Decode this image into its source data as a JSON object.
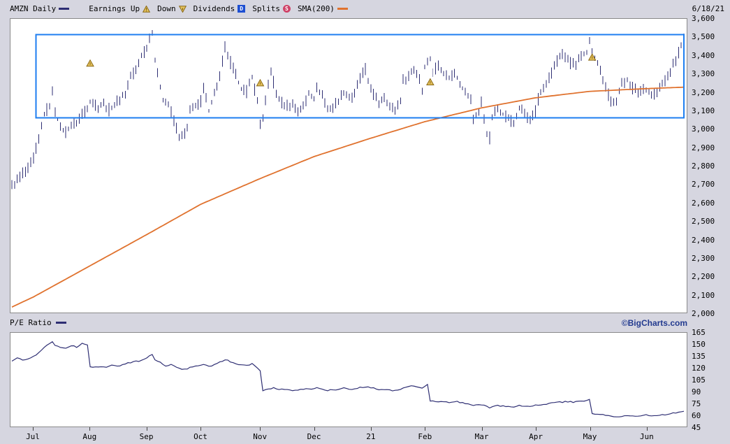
{
  "header": {
    "symbol": "AMZN Daily",
    "legend": {
      "earnings_up": "Earnings Up",
      "down": "Down",
      "dividends": "Dividends",
      "splits": "Splits",
      "sma": "SMA(200)"
    },
    "icons": {
      "dividends_letter": "D",
      "splits_letter": "S"
    },
    "date": "6/18/21"
  },
  "pe_band": {
    "label": "P/E Ratio",
    "brand": "©BigCharts.com"
  },
  "colors": {
    "price": "#2e2e73",
    "sma": "#e0722e",
    "annotation": "#1e7ef0",
    "marker_fill": "#e3c05c",
    "marker_stroke": "#8a6914",
    "pe_line": "#2e2e73",
    "dividends_bg": "#1e4fd2",
    "splits_bg": "#cf4368"
  },
  "chart_data": [
    {
      "type": "ohlc-bar",
      "title": "AMZN Daily price",
      "legend": [
        "AMZN Daily",
        "SMA(200)"
      ],
      "ylim": [
        2000,
        3600
      ],
      "y_ticks": [
        "3,600",
        "3,500",
        "3,400",
        "3,300",
        "3,200",
        "3,100",
        "3,000",
        "2,900",
        "2,800",
        "2,700",
        "2,600",
        "2,500",
        "2,400",
        "2,300",
        "2,200",
        "2,100",
        "2,000"
      ],
      "grid": false,
      "bar_count": 250,
      "bar_range": 30,
      "x_months": [
        {
          "label": "Jul",
          "day": 8
        },
        {
          "label": "Aug",
          "day": 29
        },
        {
          "label": "Sep",
          "day": 50
        },
        {
          "label": "Oct",
          "day": 70
        },
        {
          "label": "Nov",
          "day": 92
        },
        {
          "label": "Dec",
          "day": 112
        },
        {
          "label": "21",
          "day": 133
        },
        {
          "label": "Feb",
          "day": 153
        },
        {
          "label": "Mar",
          "day": 174
        },
        {
          "label": "Apr",
          "day": 194
        },
        {
          "label": "May",
          "day": 214
        },
        {
          "label": "Jun",
          "day": 235
        }
      ],
      "close_keypoints": [
        [
          0,
          2690
        ],
        [
          2,
          2720
        ],
        [
          4,
          2760
        ],
        [
          6,
          2780
        ],
        [
          8,
          2840
        ],
        [
          10,
          2940
        ],
        [
          12,
          3080
        ],
        [
          14,
          3130
        ],
        [
          15,
          3200
        ],
        [
          16,
          3105
        ],
        [
          18,
          3000
        ],
        [
          20,
          2985
        ],
        [
          22,
          3020
        ],
        [
          24,
          3035
        ],
        [
          26,
          3085
        ],
        [
          28,
          3120
        ],
        [
          29,
          3150
        ],
        [
          30,
          3148
        ],
        [
          32,
          3120
        ],
        [
          34,
          3135
        ],
        [
          36,
          3105
        ],
        [
          38,
          3130
        ],
        [
          40,
          3165
        ],
        [
          42,
          3190
        ],
        [
          44,
          3290
        ],
        [
          46,
          3320
        ],
        [
          48,
          3400
        ],
        [
          50,
          3450
        ],
        [
          51,
          3499
        ],
        [
          52,
          3530
        ],
        [
          53,
          3370
        ],
        [
          54,
          3295
        ],
        [
          56,
          3160
        ],
        [
          58,
          3130
        ],
        [
          60,
          3050
        ],
        [
          62,
          2960
        ],
        [
          63,
          2955
        ],
        [
          65,
          3000
        ],
        [
          66,
          3095
        ],
        [
          68,
          3130
        ],
        [
          70,
          3149
        ],
        [
          71,
          3221
        ],
        [
          73,
          3100
        ],
        [
          75,
          3190
        ],
        [
          77,
          3286
        ],
        [
          79,
          3443
        ],
        [
          81,
          3363
        ],
        [
          83,
          3290
        ],
        [
          85,
          3220
        ],
        [
          87,
          3204
        ],
        [
          89,
          3286
        ],
        [
          91,
          3150
        ],
        [
          92,
          3036
        ],
        [
          93,
          3050
        ],
        [
          95,
          3241
        ],
        [
          96,
          3322
        ],
        [
          98,
          3190
        ],
        [
          100,
          3140
        ],
        [
          102,
          3130
        ],
        [
          104,
          3135
        ],
        [
          106,
          3100
        ],
        [
          108,
          3120
        ],
        [
          110,
          3195
        ],
        [
          112,
          3168
        ],
        [
          113,
          3220
        ],
        [
          115,
          3187
        ],
        [
          117,
          3105
        ],
        [
          119,
          3120
        ],
        [
          121,
          3157
        ],
        [
          123,
          3201
        ],
        [
          125,
          3172
        ],
        [
          127,
          3185
        ],
        [
          129,
          3283
        ],
        [
          131,
          3322
        ],
        [
          132,
          3257
        ],
        [
          133,
          3230
        ],
        [
          134,
          3187
        ],
        [
          136,
          3138
        ],
        [
          138,
          3182
        ],
        [
          140,
          3120
        ],
        [
          142,
          3104
        ],
        [
          144,
          3160
        ],
        [
          145,
          3264
        ],
        [
          147,
          3292
        ],
        [
          149,
          3326
        ],
        [
          151,
          3280
        ],
        [
          152,
          3206
        ],
        [
          153,
          3342
        ],
        [
          155,
          3380
        ],
        [
          156,
          3312
        ],
        [
          158,
          3352
        ],
        [
          160,
          3305
        ],
        [
          162,
          3277
        ],
        [
          164,
          3308
        ],
        [
          166,
          3249
        ],
        [
          168,
          3194
        ],
        [
          170,
          3159
        ],
        [
          171,
          3057
        ],
        [
          173,
          3092
        ],
        [
          174,
          3146
        ],
        [
          176,
          2977
        ],
        [
          177,
          2951
        ],
        [
          178,
          3062
        ],
        [
          180,
          3113
        ],
        [
          182,
          3081
        ],
        [
          184,
          3062
        ],
        [
          186,
          3027
        ],
        [
          188,
          3110
        ],
        [
          190,
          3087
        ],
        [
          192,
          3046
        ],
        [
          194,
          3094
        ],
        [
          195,
          3161
        ],
        [
          197,
          3226
        ],
        [
          199,
          3279
        ],
        [
          201,
          3344
        ],
        [
          203,
          3400
        ],
        [
          205,
          3399
        ],
        [
          207,
          3362
        ],
        [
          209,
          3340
        ],
        [
          211,
          3409
        ],
        [
          213,
          3417
        ],
        [
          214,
          3471
        ],
        [
          216,
          3386
        ],
        [
          218,
          3320
        ],
        [
          220,
          3223
        ],
        [
          222,
          3151
        ],
        [
          224,
          3161
        ],
        [
          226,
          3244
        ],
        [
          228,
          3270
        ],
        [
          230,
          3226
        ],
        [
          232,
          3203
        ],
        [
          234,
          3223
        ],
        [
          235,
          3218
        ],
        [
          237,
          3187
        ],
        [
          239,
          3198
        ],
        [
          241,
          3244
        ],
        [
          243,
          3290
        ],
        [
          245,
          3346
        ],
        [
          247,
          3415
        ],
        [
          248,
          3462
        ],
        [
          249,
          3487
        ]
      ],
      "sma200_keypoints": [
        [
          0,
          2030
        ],
        [
          8,
          2085
        ],
        [
          29,
          2255
        ],
        [
          50,
          2425
        ],
        [
          70,
          2590
        ],
        [
          92,
          2730
        ],
        [
          112,
          2850
        ],
        [
          133,
          2950
        ],
        [
          153,
          3040
        ],
        [
          174,
          3115
        ],
        [
          194,
          3170
        ],
        [
          214,
          3205
        ],
        [
          235,
          3220
        ],
        [
          249,
          3228
        ]
      ],
      "annotation_rect": {
        "day_start": 9,
        "day_end": 249,
        "top": 3515,
        "bottom": 3060
      },
      "earnings_markers": [
        {
          "day": 29,
          "value": 3357
        },
        {
          "day": 92,
          "value": 3250
        },
        {
          "day": 155,
          "value": 3255
        },
        {
          "day": 215,
          "value": 3390
        }
      ]
    },
    {
      "type": "line",
      "title": "P/E Ratio",
      "ylim": [
        45,
        165
      ],
      "y_ticks": [
        "165",
        "150",
        "135",
        "120",
        "105",
        "90",
        "75",
        "60",
        "45"
      ],
      "grid": false,
      "points": [
        [
          0,
          128
        ],
        [
          2,
          133
        ],
        [
          4,
          130
        ],
        [
          6,
          132
        ],
        [
          8,
          135
        ],
        [
          10,
          139
        ],
        [
          12,
          146
        ],
        [
          14,
          152
        ],
        [
          15,
          154
        ],
        [
          16,
          149
        ],
        [
          18,
          147
        ],
        [
          20,
          146
        ],
        [
          22,
          149
        ],
        [
          24,
          147
        ],
        [
          26,
          151
        ],
        [
          28,
          149
        ],
        [
          29,
          122
        ],
        [
          31,
          121
        ],
        [
          33,
          122
        ],
        [
          35,
          121
        ],
        [
          37,
          123
        ],
        [
          39,
          122
        ],
        [
          41,
          124
        ],
        [
          43,
          126
        ],
        [
          45,
          128
        ],
        [
          47,
          129
        ],
        [
          49,
          131
        ],
        [
          51,
          135
        ],
        [
          52,
          137
        ],
        [
          53,
          131
        ],
        [
          55,
          127
        ],
        [
          57,
          123
        ],
        [
          59,
          124
        ],
        [
          61,
          121
        ],
        [
          63,
          118
        ],
        [
          65,
          119
        ],
        [
          67,
          122
        ],
        [
          69,
          123
        ],
        [
          71,
          125
        ],
        [
          73,
          122
        ],
        [
          75,
          124
        ],
        [
          77,
          127
        ],
        [
          79,
          131
        ],
        [
          81,
          128
        ],
        [
          83,
          126
        ],
        [
          85,
          124
        ],
        [
          87,
          123
        ],
        [
          89,
          125
        ],
        [
          91,
          120
        ],
        [
          92,
          117
        ],
        [
          93,
          90
        ],
        [
          95,
          93
        ],
        [
          97,
          95
        ],
        [
          99,
          93
        ],
        [
          101,
          92
        ],
        [
          103,
          92
        ],
        [
          105,
          91
        ],
        [
          107,
          92
        ],
        [
          109,
          94
        ],
        [
          111,
          93
        ],
        [
          113,
          95
        ],
        [
          115,
          93
        ],
        [
          117,
          91
        ],
        [
          119,
          92
        ],
        [
          121,
          93
        ],
        [
          123,
          94
        ],
        [
          125,
          93
        ],
        [
          127,
          93
        ],
        [
          129,
          95
        ],
        [
          131,
          96
        ],
        [
          133,
          95
        ],
        [
          135,
          93
        ],
        [
          137,
          92
        ],
        [
          139,
          93
        ],
        [
          141,
          91
        ],
        [
          143,
          91
        ],
        [
          145,
          95
        ],
        [
          147,
          96
        ],
        [
          149,
          97
        ],
        [
          151,
          95
        ],
        [
          152,
          94
        ],
        [
          154,
          99
        ],
        [
          155,
          78
        ],
        [
          157,
          77
        ],
        [
          159,
          77
        ],
        [
          161,
          76
        ],
        [
          163,
          76
        ],
        [
          165,
          77
        ],
        [
          167,
          75
        ],
        [
          169,
          74
        ],
        [
          171,
          72
        ],
        [
          173,
          73
        ],
        [
          175,
          72
        ],
        [
          177,
          69
        ],
        [
          178,
          71
        ],
        [
          180,
          72
        ],
        [
          182,
          71
        ],
        [
          184,
          71
        ],
        [
          186,
          70
        ],
        [
          188,
          72
        ],
        [
          190,
          71
        ],
        [
          192,
          70
        ],
        [
          194,
          72
        ],
        [
          196,
          73
        ],
        [
          198,
          74
        ],
        [
          200,
          75
        ],
        [
          202,
          76
        ],
        [
          204,
          76
        ],
        [
          206,
          77
        ],
        [
          208,
          76
        ],
        [
          210,
          77
        ],
        [
          212,
          78
        ],
        [
          214,
          80
        ],
        [
          215,
          62
        ],
        [
          217,
          61
        ],
        [
          219,
          60
        ],
        [
          221,
          59
        ],
        [
          223,
          58
        ],
        [
          225,
          58
        ],
        [
          227,
          59
        ],
        [
          229,
          59
        ],
        [
          231,
          58
        ],
        [
          233,
          59
        ],
        [
          235,
          60
        ],
        [
          237,
          59
        ],
        [
          239,
          59
        ],
        [
          241,
          60
        ],
        [
          243,
          61
        ],
        [
          245,
          62
        ],
        [
          247,
          63
        ],
        [
          249,
          65
        ]
      ]
    }
  ]
}
